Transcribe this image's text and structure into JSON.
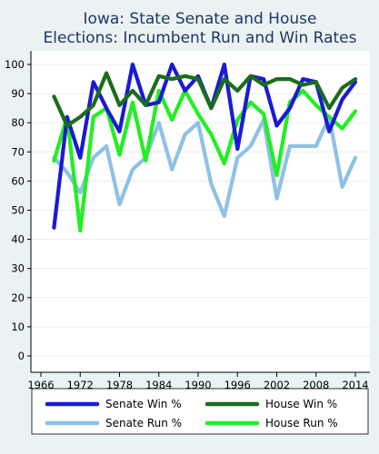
{
  "chart_data": {
    "type": "line",
    "title_lines": [
      "Iowa: State Senate and House",
      "Elections: Incumbent Run and Win Rates"
    ],
    "xlabel": "",
    "ylabel": "",
    "xlim": [
      1964,
      2015
    ],
    "ylim": [
      0,
      100
    ],
    "x_ticks": [
      1966,
      1972,
      1978,
      1984,
      1990,
      1996,
      2002,
      2008,
      2014
    ],
    "y_ticks": [
      0,
      10,
      20,
      30,
      40,
      50,
      60,
      70,
      80,
      90,
      100
    ],
    "grid": true,
    "legend_position": "bottom",
    "x": [
      1968,
      1970,
      1972,
      1974,
      1976,
      1978,
      1980,
      1982,
      1984,
      1986,
      1988,
      1990,
      1992,
      1994,
      1996,
      1998,
      2000,
      2002,
      2004,
      2006,
      2008,
      2010,
      2012,
      2014
    ],
    "series": [
      {
        "name": "Senate Win %",
        "color": "#1a1ad6",
        "width": 4.2,
        "values": [
          44,
          82,
          68,
          94,
          85,
          77,
          100,
          86,
          87,
          100,
          91,
          96,
          85,
          100,
          71,
          96,
          95,
          79,
          85,
          95,
          94,
          77,
          88,
          94
        ]
      },
      {
        "name": "House Win %",
        "color": "#1a6e1a",
        "width": 4.2,
        "values": [
          89,
          79,
          82,
          86,
          97,
          86,
          91,
          86,
          96,
          95,
          96,
          95,
          85,
          95,
          91,
          96,
          93,
          95,
          95,
          93,
          94,
          85,
          92,
          95
        ]
      },
      {
        "name": "Senate Run %",
        "color": "#8ec1e6",
        "width": 4.2,
        "values": [
          68,
          63,
          56,
          68,
          72,
          52,
          64,
          68,
          80,
          64,
          76,
          80,
          59,
          48,
          68,
          72,
          81,
          54,
          72,
          72,
          72,
          82,
          58,
          68
        ]
      },
      {
        "name": "House Run %",
        "color": "#22ee22",
        "width": 4.2,
        "values": [
          67,
          82,
          43,
          82,
          85,
          69,
          87,
          67,
          91,
          81,
          91,
          83,
          76,
          66,
          81,
          87,
          83,
          62,
          87,
          91,
          86,
          82,
          78,
          84
        ]
      }
    ]
  }
}
